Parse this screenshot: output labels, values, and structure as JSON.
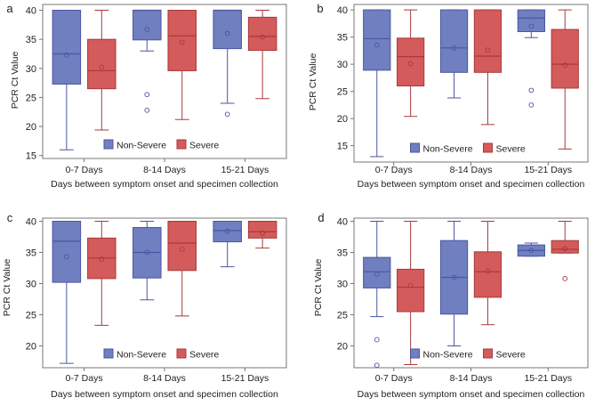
{
  "figure": {
    "panel_type": "box plot (2x2 grid)"
  },
  "legend": {
    "non_severe_label": "Non-Severe",
    "severe_label": "Severe"
  },
  "colors": {
    "non_severe_fill": "#6f7fbf",
    "non_severe_edge": "#4a56a3",
    "severe_fill": "#d45b5b",
    "severe_edge": "#a83a3a",
    "axis": "#777777"
  },
  "chart_data": [
    {
      "type": "box",
      "panel_letter": "a",
      "title": "",
      "xlabel": "Days between symptom onset and specimen collection",
      "ylabel": "PCR Ct Value",
      "ylim": [
        14.5,
        41
      ],
      "yticks": [
        15,
        20,
        25,
        30,
        35,
        40
      ],
      "categories": [
        "0-7 Days",
        "8-14 Days",
        "15-21 Days"
      ],
      "series": [
        {
          "name": "Non-Severe",
          "boxes": [
            {
              "whisker_low": 16,
              "q1": 27.3,
              "median": 32.5,
              "q3": 40,
              "whisker_high": 40,
              "mean": 32.3,
              "outliers": []
            },
            {
              "whisker_low": 33.0,
              "q1": 34.9,
              "median": 40,
              "q3": 40,
              "whisker_high": 40,
              "mean": 36.7,
              "outliers": [
                25.5,
                22.8
              ]
            },
            {
              "whisker_low": 24.0,
              "q1": 33.4,
              "median": 40,
              "q3": 40,
              "whisker_high": 40,
              "mean": 36.0,
              "outliers": [
                22.1
              ]
            }
          ]
        },
        {
          "name": "Severe",
          "boxes": [
            {
              "whisker_low": 19.4,
              "q1": 26.5,
              "median": 29.6,
              "q3": 35.0,
              "whisker_high": 40,
              "mean": 30.2,
              "outliers": []
            },
            {
              "whisker_low": 21.2,
              "q1": 29.6,
              "median": 35.6,
              "q3": 40,
              "whisker_high": 40,
              "mean": 34.5,
              "outliers": []
            },
            {
              "whisker_low": 24.8,
              "q1": 33.1,
              "median": 35.5,
              "q3": 38.8,
              "whisker_high": 40,
              "mean": 35.4,
              "outliers": []
            }
          ]
        }
      ]
    },
    {
      "type": "box",
      "panel_letter": "b",
      "title": "",
      "xlabel": "Days between symptom onset and specimen collection",
      "ylabel": "PCR Ct Value",
      "ylim": [
        12,
        41
      ],
      "yticks": [
        15,
        20,
        25,
        30,
        35,
        40
      ],
      "categories": [
        "0-7 Days",
        "8-14 Days",
        "15-21 Days"
      ],
      "series": [
        {
          "name": "Non-Severe",
          "boxes": [
            {
              "whisker_low": 13.0,
              "q1": 28.9,
              "median": 34.7,
              "q3": 40,
              "whisker_high": 40,
              "mean": 33.5,
              "outliers": []
            },
            {
              "whisker_low": 23.8,
              "q1": 28.5,
              "median": 33.0,
              "q3": 40,
              "whisker_high": 40,
              "mean": 33.0,
              "outliers": []
            },
            {
              "whisker_low": 34.9,
              "q1": 36.0,
              "median": 38.5,
              "q3": 40,
              "whisker_high": 40,
              "mean": 37.0,
              "outliers": [
                25.2,
                22.5
              ]
            }
          ]
        },
        {
          "name": "Severe",
          "boxes": [
            {
              "whisker_low": 20.4,
              "q1": 26.0,
              "median": 31.4,
              "q3": 34.8,
              "whisker_high": 40,
              "mean": 30.1,
              "outliers": []
            },
            {
              "whisker_low": 18.9,
              "q1": 28.5,
              "median": 31.5,
              "q3": 40,
              "whisker_high": 40,
              "mean": 32.6,
              "outliers": []
            },
            {
              "whisker_low": 14.4,
              "q1": 25.6,
              "median": 30.0,
              "q3": 36.4,
              "whisker_high": 40,
              "mean": 29.8,
              "outliers": []
            }
          ]
        }
      ]
    },
    {
      "type": "box",
      "panel_letter": "c",
      "title": "",
      "xlabel": "Days between symptom onset and specimen collection",
      "ylabel": "PCR Ct Value",
      "ylim": [
        16.5,
        40.5
      ],
      "yticks": [
        20,
        25,
        30,
        35,
        40
      ],
      "categories": [
        "0-7 Days",
        "8-14 Days",
        "15-21 Days"
      ],
      "series": [
        {
          "name": "Non-Severe",
          "boxes": [
            {
              "whisker_low": 17.2,
              "q1": 30.2,
              "median": 36.8,
              "q3": 40,
              "whisker_high": 40,
              "mean": 34.3,
              "outliers": []
            },
            {
              "whisker_low": 27.4,
              "q1": 30.9,
              "median": 35.0,
              "q3": 39.0,
              "whisker_high": 40,
              "mean": 35.0,
              "outliers": []
            },
            {
              "whisker_low": 32.7,
              "q1": 36.7,
              "median": 38.5,
              "q3": 40,
              "whisker_high": 40,
              "mean": 38.4,
              "outliers": []
            }
          ]
        },
        {
          "name": "Severe",
          "boxes": [
            {
              "whisker_low": 23.3,
              "q1": 30.8,
              "median": 34.1,
              "q3": 37.3,
              "whisker_high": 40,
              "mean": 33.9,
              "outliers": []
            },
            {
              "whisker_low": 24.8,
              "q1": 32.1,
              "median": 36.5,
              "q3": 40,
              "whisker_high": 40,
              "mean": 35.5,
              "outliers": []
            },
            {
              "whisker_low": 35.7,
              "q1": 37.3,
              "median": 38.3,
              "q3": 40,
              "whisker_high": 40,
              "mean": 38.1,
              "outliers": []
            }
          ]
        }
      ]
    },
    {
      "type": "box",
      "panel_letter": "d",
      "title": "",
      "xlabel": "Days between symptom onset and specimen collection",
      "ylabel": "PCR Ct Value",
      "ylim": [
        16.5,
        40.5
      ],
      "yticks": [
        20,
        25,
        30,
        35,
        40
      ],
      "categories": [
        "0-7 Days",
        "8-14 Days",
        "15-21 Days"
      ],
      "series": [
        {
          "name": "Non-Severe",
          "boxes": [
            {
              "whisker_low": 24.7,
              "q1": 29.3,
              "median": 31.9,
              "q3": 34.2,
              "whisker_high": 40,
              "mean": 31.5,
              "outliers": [
                21.0,
                16.9
              ]
            },
            {
              "whisker_low": 20.0,
              "q1": 25.1,
              "median": 31.0,
              "q3": 36.9,
              "whisker_high": 40,
              "mean": 31.0,
              "outliers": []
            },
            {
              "whisker_low": 34.4,
              "q1": 34.4,
              "median": 35.3,
              "q3": 36.2,
              "whisker_high": 36.5,
              "mean": 35.3,
              "outliers": []
            }
          ]
        },
        {
          "name": "Severe",
          "boxes": [
            {
              "whisker_low": 17.0,
              "q1": 25.5,
              "median": 29.4,
              "q3": 32.3,
              "whisker_high": 40,
              "mean": 29.7,
              "outliers": []
            },
            {
              "whisker_low": 23.4,
              "q1": 27.8,
              "median": 31.9,
              "q3": 35.1,
              "whisker_high": 40,
              "mean": 32.0,
              "outliers": []
            },
            {
              "whisker_low": 34.9,
              "q1": 34.9,
              "median": 35.5,
              "q3": 36.9,
              "whisker_high": 40,
              "mean": 35.6,
              "outliers": [
                30.8
              ]
            }
          ]
        }
      ]
    }
  ]
}
